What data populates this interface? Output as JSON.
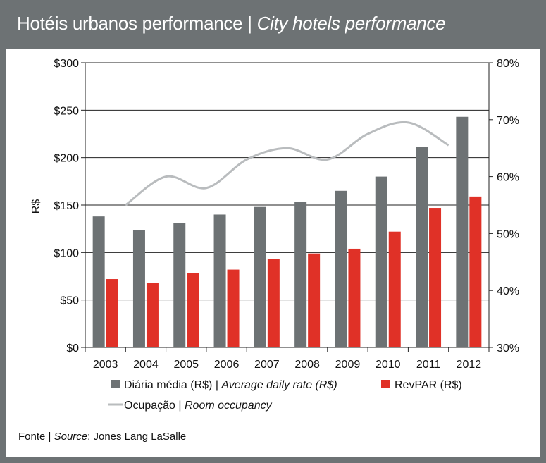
{
  "header": {
    "title_pt": "Hotéis urbanos performance",
    "separator": "|",
    "title_en": "City hotels performance"
  },
  "chart_data": {
    "type": "bar",
    "categories": [
      "2003",
      "2004",
      "2005",
      "2006",
      "2007",
      "2008",
      "2009",
      "2010",
      "2011",
      "2012"
    ],
    "series": [
      {
        "name": "Diária média (R$) | Average daily rate (R$)",
        "name_pt": "Diária média (R$)",
        "name_en": "Average daily rate (R$)",
        "type": "bar",
        "axis": "left",
        "color": "#6d7274",
        "values": [
          138,
          124,
          131,
          140,
          148,
          153,
          165,
          180,
          211,
          243
        ]
      },
      {
        "name": "RevPAR (R$)",
        "type": "bar",
        "axis": "left",
        "color": "#e03127",
        "values": [
          72,
          68,
          78,
          82,
          93,
          99,
          104,
          122,
          147,
          159
        ]
      },
      {
        "name": "Ocupação | Room occupancy",
        "name_pt": "Ocupação",
        "name_en": "Room occupancy",
        "type": "line",
        "axis": "right",
        "color": "#b9bcbe",
        "values": [
          null,
          55,
          60,
          58,
          63,
          65,
          63,
          67.5,
          69.5,
          65.5
        ]
      }
    ],
    "ylabel": "R$",
    "ylim": [
      0,
      300
    ],
    "yticks": [
      "$0",
      "$50",
      "$100",
      "$150",
      "$200",
      "$250",
      "$300"
    ],
    "y2lim": [
      30,
      80
    ],
    "y2ticks": [
      "30%",
      "40%",
      "50%",
      "60%",
      "70%",
      "80%"
    ],
    "grid": true,
    "legend": "bottom"
  },
  "source": {
    "label_pt": "Fonte",
    "separator": "|",
    "label_en": "Source",
    "colon": ":",
    "text": "Jones Lang LaSalle"
  }
}
